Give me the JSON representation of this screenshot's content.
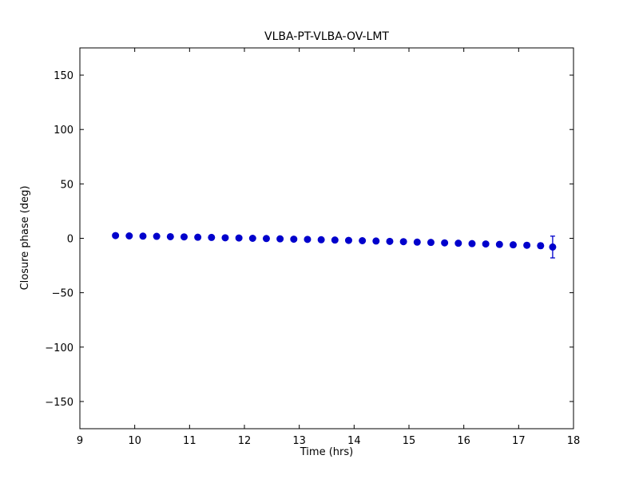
{
  "chart_data": {
    "type": "scatter",
    "title": "VLBA-PT-VLBA-OV-LMT",
    "xlabel": "Time (hrs)",
    "ylabel": "Closure phase (deg)",
    "xlim": [
      9,
      18
    ],
    "ylim": [
      -175,
      175
    ],
    "xticks": [
      9,
      10,
      11,
      12,
      13,
      14,
      15,
      16,
      17,
      18
    ],
    "yticks": [
      -150,
      -100,
      -50,
      0,
      50,
      100,
      150
    ],
    "grid": false,
    "legend": "none",
    "marker": "circle",
    "marker_color": "#0000cc",
    "errorbar_color": "#0000cc",
    "frame_color": "#000000",
    "points": [
      {
        "x": 9.65,
        "y": 2.5,
        "err": 1.2
      },
      {
        "x": 9.9,
        "y": 2.2,
        "err": 1.2
      },
      {
        "x": 10.15,
        "y": 2.0,
        "err": 1.2
      },
      {
        "x": 10.4,
        "y": 1.8,
        "err": 1.2
      },
      {
        "x": 10.65,
        "y": 1.5,
        "err": 1.2
      },
      {
        "x": 10.9,
        "y": 1.3,
        "err": 1.2
      },
      {
        "x": 11.15,
        "y": 1.0,
        "err": 1.2
      },
      {
        "x": 11.4,
        "y": 0.8,
        "err": 1.2
      },
      {
        "x": 11.65,
        "y": 0.5,
        "err": 1.2
      },
      {
        "x": 11.9,
        "y": 0.3,
        "err": 1.3
      },
      {
        "x": 12.15,
        "y": 0.0,
        "err": 1.3
      },
      {
        "x": 12.4,
        "y": -0.2,
        "err": 1.3
      },
      {
        "x": 12.65,
        "y": -0.5,
        "err": 1.3
      },
      {
        "x": 12.9,
        "y": -0.8,
        "err": 1.3
      },
      {
        "x": 13.15,
        "y": -1.0,
        "err": 1.3
      },
      {
        "x": 13.4,
        "y": -1.3,
        "err": 1.4
      },
      {
        "x": 13.65,
        "y": -1.6,
        "err": 1.4
      },
      {
        "x": 13.9,
        "y": -1.9,
        "err": 1.4
      },
      {
        "x": 14.15,
        "y": -2.2,
        "err": 1.4
      },
      {
        "x": 14.4,
        "y": -2.5,
        "err": 1.5
      },
      {
        "x": 14.65,
        "y": -2.8,
        "err": 1.5
      },
      {
        "x": 14.9,
        "y": -3.1,
        "err": 1.5
      },
      {
        "x": 15.15,
        "y": -3.5,
        "err": 1.6
      },
      {
        "x": 15.4,
        "y": -3.8,
        "err": 1.6
      },
      {
        "x": 15.65,
        "y": -4.2,
        "err": 1.7
      },
      {
        "x": 15.9,
        "y": -4.5,
        "err": 1.7
      },
      {
        "x": 16.15,
        "y": -4.9,
        "err": 1.8
      },
      {
        "x": 16.4,
        "y": -5.2,
        "err": 1.8
      },
      {
        "x": 16.65,
        "y": -5.6,
        "err": 1.9
      },
      {
        "x": 16.9,
        "y": -6.0,
        "err": 2.0
      },
      {
        "x": 17.15,
        "y": -6.4,
        "err": 2.1
      },
      {
        "x": 17.4,
        "y": -6.8,
        "err": 2.3
      },
      {
        "x": 17.62,
        "y": -8.0,
        "err": 10.0
      }
    ]
  }
}
